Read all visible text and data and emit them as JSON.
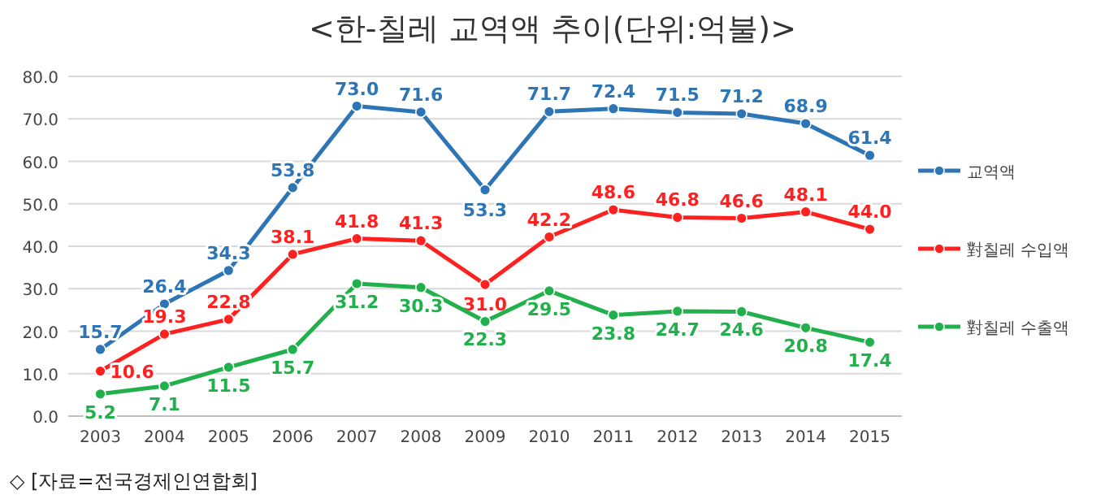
{
  "chart_data": {
    "type": "line",
    "title": "<한-칠레 교역액 추이(단위:억불)>",
    "categories": [
      "2003",
      "2004",
      "2005",
      "2006",
      "2007",
      "2008",
      "2009",
      "2010",
      "2011",
      "2012",
      "2013",
      "2014",
      "2015"
    ],
    "series": [
      {
        "name": "교역액",
        "color": "#2e75b6",
        "values": [
          15.7,
          26.4,
          34.3,
          53.8,
          73.0,
          71.6,
          53.3,
          71.7,
          72.4,
          71.5,
          71.2,
          68.9,
          61.4
        ],
        "value_labels": [
          "15.7",
          "26.4",
          "34.3",
          "53.8",
          "73.0",
          "71.6",
          "53.3",
          "71.7",
          "72.4",
          "71.5",
          "71.2",
          "68.9",
          "61.4"
        ]
      },
      {
        "name": "對칠레 수입액",
        "color": "#ff2020",
        "values": [
          10.6,
          19.3,
          22.8,
          38.1,
          41.8,
          41.3,
          31.0,
          42.2,
          48.6,
          46.8,
          46.6,
          48.1,
          44.0
        ],
        "value_labels": [
          "10.6",
          "19.3",
          "22.8",
          "38.1",
          "41.8",
          "41.3",
          "31.0",
          "42.2",
          "48.6",
          "46.8",
          "46.6",
          "48.1",
          "44.0"
        ]
      },
      {
        "name": "對칠레 수출액",
        "color": "#22b04c",
        "values": [
          5.2,
          7.1,
          11.5,
          15.7,
          31.2,
          30.3,
          22.3,
          29.5,
          23.8,
          24.7,
          24.6,
          20.8,
          17.4
        ],
        "value_labels": [
          "5.2",
          "7.1",
          "11.5",
          "15.7",
          "31.2",
          "30.3",
          "22.3",
          "29.5",
          "23.8",
          "24.7",
          "24.6",
          "20.8",
          "17.4"
        ]
      }
    ],
    "ylim": [
      0,
      80
    ],
    "yticks": [
      {
        "value": 0,
        "label": "0.0"
      },
      {
        "value": 10,
        "label": "10.0"
      },
      {
        "value": 20,
        "label": "20.0"
      },
      {
        "value": 30,
        "label": "30.0"
      },
      {
        "value": 40,
        "label": "40.0"
      },
      {
        "value": 50,
        "label": "50.0"
      },
      {
        "value": 60,
        "label": "60.0"
      },
      {
        "value": 70,
        "label": "70.0"
      },
      {
        "value": 80,
        "label": "80.0"
      }
    ],
    "grid": "y",
    "legend": "right",
    "marker": "circle",
    "annotations": [
      "◇ [자료=전국경제인연합회]"
    ]
  }
}
